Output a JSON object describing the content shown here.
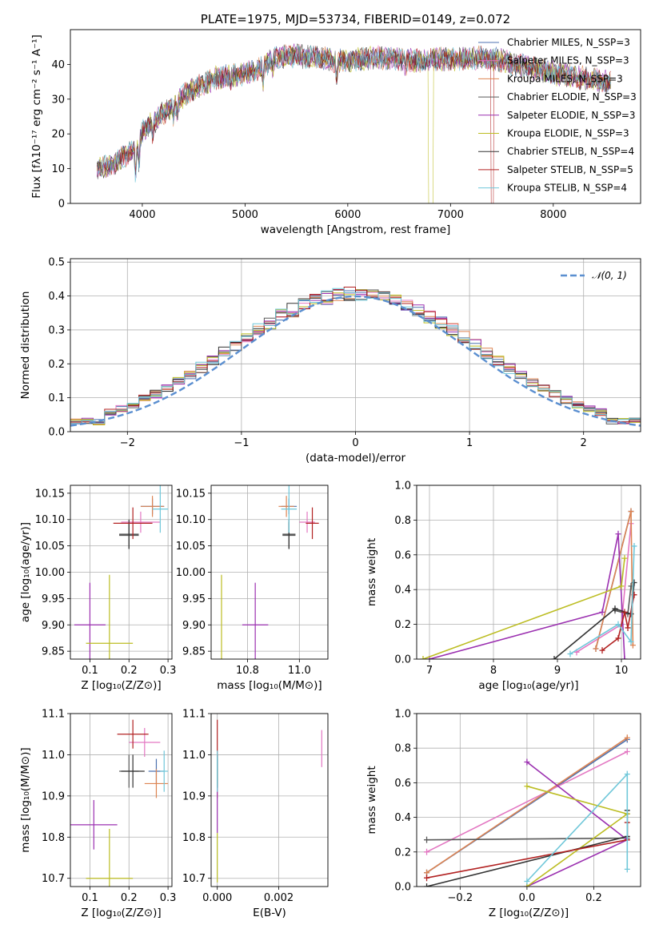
{
  "colors": {
    "chabrier_miles": "#4c72b0",
    "salpeter_miles": "#e377c2",
    "kroupa_miles": "#dd8452",
    "chabrier_elodie": "#5a5a5a",
    "salpeter_elodie": "#9b30b0",
    "kroupa_elodie": "#bcbd22",
    "chabrier_stelib": "#333333",
    "salpeter_stelib": "#b22222",
    "kroupa_stelib": "#6fc7d9",
    "gaussian": "#5b8fd0"
  },
  "chart_data": [
    {
      "name": "spectrum",
      "type": "line",
      "title": "PLATE=1975, MJD=53734, FIBERID=0149, z=0.072",
      "xlabel": "wavelength [Angstrom, rest frame]",
      "ylabel": "Flux [fλ10⁻¹⁷ erg cm⁻² s⁻¹ A⁻¹]",
      "xlim": [
        3300,
        8850
      ],
      "ylim": [
        0,
        50
      ],
      "xticks": [
        4000,
        5000,
        6000,
        7000,
        8000
      ],
      "yticks": [
        0,
        10,
        20,
        30,
        40
      ],
      "grid": false,
      "legend_position": "top-right",
      "continuum": {
        "x": [
          3560,
          3700,
          3850,
          3950,
          4000,
          4100,
          4200,
          4300,
          4400,
          4500,
          4700,
          4900,
          5100,
          5300,
          5500,
          5700,
          5900,
          6100,
          6300,
          6500,
          6700,
          6900,
          7100,
          7300,
          7500,
          7700,
          7900,
          8100,
          8300,
          8500,
          8700
        ],
        "y": [
          10,
          11,
          14,
          16,
          21,
          23,
          26,
          28,
          31,
          33,
          36,
          37,
          38,
          42,
          42.5,
          42,
          41,
          41.5,
          42,
          41.5,
          41,
          41.5,
          41.5,
          42,
          41,
          39.5,
          38,
          37,
          36,
          35,
          34
        ]
      },
      "legend": [
        "Chabrier MILES, N_SSP=3",
        "Salpeter MILES, N_SSP=3",
        "Kroupa MILES, N_SSP=3",
        "Chabrier ELODIE, N_SSP=3",
        "Salpeter ELODIE, N_SSP=3",
        "Kroupa ELODIE, N_SSP=3",
        "Chabrier STELIB, N_SSP=4",
        "Salpeter STELIB, N_SSP=5",
        "Kroupa STELIB, N_SSP=4"
      ]
    },
    {
      "name": "residuals",
      "type": "line",
      "xlabel": "(data-model)/error",
      "ylabel": "Normed distribution",
      "xlim": [
        -2.5,
        2.5
      ],
      "ylim": [
        0,
        0.51
      ],
      "xticks": [
        -2,
        -1,
        0,
        1,
        2
      ],
      "yticks": [
        0.0,
        0.1,
        0.2,
        0.3,
        0.4,
        0.5
      ],
      "grid": true,
      "legend": [
        "𝒩(0, 1)"
      ],
      "legend_position": "top-right"
    },
    {
      "name": "age_vs_Z",
      "type": "scatter",
      "xlabel": "Z [log₁₀(Z/Z⊙)]",
      "ylabel": "age  [log₁₀(age/yr)]",
      "xlim": [
        0.05,
        0.31
      ],
      "ylim": [
        9.835,
        10.165
      ],
      "xticks": [
        0.1,
        0.2,
        0.3
      ],
      "yticks": [
        9.85,
        9.9,
        9.95,
        10.0,
        10.05,
        10.1,
        10.15
      ],
      "grid": true,
      "points": [
        {
          "s": "chabrier_miles",
          "x": 0.26,
          "y": 10.125,
          "xe": 0.03,
          "ye": 0.015
        },
        {
          "s": "salpeter_miles",
          "x": 0.23,
          "y": 10.095,
          "xe": 0.05,
          "ye": 0.02
        },
        {
          "s": "kroupa_miles",
          "x": 0.26,
          "y": 10.125,
          "xe": 0.03,
          "ye": 0.02
        },
        {
          "s": "chabrier_elodie",
          "x": 0.2,
          "y": 10.07,
          "xe": 0.025,
          "ye": 0.025
        },
        {
          "s": "salpeter_elodie",
          "x": 0.1,
          "y": 9.9,
          "xe": 0.04,
          "ye": 0.08
        },
        {
          "s": "kroupa_elodie",
          "x": 0.15,
          "y": 9.865,
          "xe": 0.06,
          "ye": 0.13
        },
        {
          "s": "chabrier_stelib",
          "x": 0.2,
          "y": 10.072,
          "xe": 0.025,
          "ye": 0.028
        },
        {
          "s": "salpeter_stelib",
          "x": 0.21,
          "y": 10.093,
          "xe": 0.05,
          "ye": 0.03
        },
        {
          "s": "kroupa_stelib",
          "x": 0.28,
          "y": 10.12,
          "xe": 0.02,
          "ye": 0.045
        }
      ]
    },
    {
      "name": "age_vs_mass",
      "type": "scatter",
      "xlabel": "mass [log₁₀(M/M⊙)]",
      "ylabel": "",
      "xlim": [
        10.66,
        11.11
      ],
      "ylim": [
        9.835,
        10.165
      ],
      "xticks": [
        10.8,
        11.0
      ],
      "yticks": [
        9.85,
        9.9,
        9.95,
        10.0,
        10.05,
        10.1,
        10.15
      ],
      "grid": true,
      "points": [
        {
          "s": "chabrier_miles",
          "x": 10.96,
          "y": 10.125,
          "xe": 0.03,
          "ye": 0.015
        },
        {
          "s": "salpeter_miles",
          "x": 11.03,
          "y": 10.095,
          "xe": 0.03,
          "ye": 0.02
        },
        {
          "s": "kroupa_miles",
          "x": 10.95,
          "y": 10.125,
          "xe": 0.03,
          "ye": 0.02
        },
        {
          "s": "chabrier_elodie",
          "x": 10.96,
          "y": 10.07,
          "xe": 0.025,
          "ye": 0.025
        },
        {
          "s": "salpeter_elodie",
          "x": 10.83,
          "y": 9.9,
          "xe": 0.05,
          "ye": 0.08
        },
        {
          "s": "kroupa_elodie",
          "x": 10.7,
          "y": 9.865,
          "xe": 0.0,
          "ye": 0.13
        },
        {
          "s": "chabrier_stelib",
          "x": 10.96,
          "y": 10.072,
          "xe": 0.025,
          "ye": 0.028
        },
        {
          "s": "salpeter_stelib",
          "x": 11.05,
          "y": 10.093,
          "xe": 0.025,
          "ye": 0.03
        },
        {
          "s": "kroupa_stelib",
          "x": 10.96,
          "y": 10.12,
          "xe": 0.03,
          "ye": 0.045
        }
      ]
    },
    {
      "name": "massweight_vs_age",
      "type": "line",
      "xlabel": "age  [log₁₀(age/yr)]",
      "ylabel": "mass weight",
      "xlim": [
        6.8,
        10.3
      ],
      "ylim": [
        0,
        1
      ],
      "xticks": [
        7,
        8,
        9,
        10
      ],
      "yticks": [
        0.0,
        0.2,
        0.4,
        0.6,
        0.8,
        1.0
      ],
      "grid": true,
      "series": [
        {
          "s": "chabrier_miles",
          "x": [
            9.6,
            10.15
          ],
          "y": [
            0.06,
            0.85
          ]
        },
        {
          "s": "salpeter_miles",
          "x": [
            9.3,
            10.0,
            10.15
          ],
          "y": [
            0.04,
            0.2,
            0.78
          ]
        },
        {
          "s": "kroupa_miles",
          "x": [
            9.6,
            10.15,
            10.18
          ],
          "y": [
            0.06,
            0.85,
            0.08
          ]
        },
        {
          "s": "chabrier_elodie",
          "x": [
            9.9,
            10.1,
            10.15
          ],
          "y": [
            0.28,
            0.26,
            0.42
          ]
        },
        {
          "s": "salpeter_elodie",
          "x": [
            7.0,
            9.7,
            9.95,
            10.05
          ],
          "y": [
            0.0,
            0.27,
            0.72,
            0.0
          ]
        },
        {
          "s": "kroupa_elodie",
          "x": [
            6.9,
            10.0,
            10.05
          ],
          "y": [
            0.0,
            0.42,
            0.58
          ]
        },
        {
          "s": "chabrier_stelib",
          "x": [
            8.95,
            9.9,
            10.15,
            10.2
          ],
          "y": [
            0.0,
            0.29,
            0.26,
            0.44
          ]
        },
        {
          "s": "salpeter_stelib",
          "x": [
            9.7,
            9.95,
            10.05,
            10.1,
            10.2
          ],
          "y": [
            0.05,
            0.12,
            0.27,
            0.18,
            0.37
          ]
        },
        {
          "s": "kroupa_stelib",
          "x": [
            9.2,
            9.95,
            10.15,
            10.2
          ],
          "y": [
            0.03,
            0.2,
            0.1,
            0.65
          ]
        }
      ]
    },
    {
      "name": "mass_vs_Z",
      "type": "scatter",
      "xlabel": "Z [log₁₀(Z/Z⊙)]",
      "ylabel": "mass [log₁₀(M/M⊙)]",
      "xlim": [
        0.05,
        0.31
      ],
      "ylim": [
        10.68,
        11.1
      ],
      "xticks": [
        0.1,
        0.2,
        0.3
      ],
      "yticks": [
        10.7,
        10.8,
        10.9,
        11.0,
        11.1
      ],
      "grid": true,
      "points": [
        {
          "s": "chabrier_miles",
          "x": 0.27,
          "y": 10.96,
          "xe": 0.02,
          "ye": 0.03
        },
        {
          "s": "salpeter_miles",
          "x": 0.24,
          "y": 11.03,
          "xe": 0.04,
          "ye": 0.035
        },
        {
          "s": "kroupa_miles",
          "x": 0.27,
          "y": 10.93,
          "xe": 0.03,
          "ye": 0.035
        },
        {
          "s": "chabrier_elodie",
          "x": 0.2,
          "y": 10.96,
          "xe": 0.025,
          "ye": 0.04
        },
        {
          "s": "salpeter_elodie",
          "x": 0.11,
          "y": 10.83,
          "xe": 0.06,
          "ye": 0.06
        },
        {
          "s": "kroupa_elodie",
          "x": 0.15,
          "y": 10.7,
          "xe": 0.06,
          "ye": 0.12
        },
        {
          "s": "chabrier_stelib",
          "x": 0.21,
          "y": 10.96,
          "xe": 0.03,
          "ye": 0.04
        },
        {
          "s": "salpeter_stelib",
          "x": 0.21,
          "y": 11.05,
          "xe": 0.04,
          "ye": 0.035
        },
        {
          "s": "kroupa_stelib",
          "x": 0.29,
          "y": 10.96,
          "xe": 0.01,
          "ye": 0.05
        }
      ]
    },
    {
      "name": "mass_vs_EBV",
      "type": "scatter",
      "xlabel": "E(B-V)",
      "ylabel": "",
      "xlim": [
        -0.0002,
        0.0036
      ],
      "ylim": [
        10.68,
        11.1
      ],
      "xticks": [
        0.0,
        0.002
      ],
      "xticklabels": [
        "0.000",
        "0.002"
      ],
      "yticks": [
        10.7,
        10.8,
        10.9,
        11.0,
        11.1
      ],
      "grid": true,
      "points": [
        {
          "s": "chabrier_miles",
          "x": 0.0,
          "y": 10.96,
          "xe": 0,
          "ye": 0.03
        },
        {
          "s": "salpeter_miles",
          "x": 0.0034,
          "y": 11.015,
          "xe": 0,
          "ye": 0.045
        },
        {
          "s": "kroupa_miles",
          "x": 0.0,
          "y": 10.93,
          "xe": 0,
          "ye": 0.035
        },
        {
          "s": "chabrier_elodie",
          "x": 0.0,
          "y": 10.96,
          "xe": 0,
          "ye": 0.04
        },
        {
          "s": "salpeter_elodie",
          "x": 0.0,
          "y": 10.87,
          "xe": 0,
          "ye": 0.06
        },
        {
          "s": "kroupa_elodie",
          "x": 0.0,
          "y": 10.75,
          "xe": 0,
          "ye": 0.06
        },
        {
          "s": "chabrier_stelib",
          "x": 0.0,
          "y": 10.96,
          "xe": 0,
          "ye": 0.04
        },
        {
          "s": "salpeter_stelib",
          "x": 0.0,
          "y": 11.04,
          "xe": 0,
          "ye": 0.045
        },
        {
          "s": "kroupa_stelib",
          "x": 0.0,
          "y": 10.96,
          "xe": 0,
          "ye": 0.05
        }
      ]
    },
    {
      "name": "massweight_vs_Z",
      "type": "line",
      "xlabel": "Z [log₁₀(Z/Z⊙)]",
      "ylabel": "mass weight",
      "xlim": [
        -0.33,
        0.34
      ],
      "ylim": [
        0,
        1
      ],
      "xticks": [
        -0.2,
        0.0,
        0.2
      ],
      "yticks": [
        0.0,
        0.2,
        0.4,
        0.6,
        0.8,
        1.0
      ],
      "grid": true,
      "series": [
        {
          "s": "chabrier_miles",
          "x": [
            -0.3,
            0.3
          ],
          "y": [
            0.08,
            0.85
          ]
        },
        {
          "s": "salpeter_miles",
          "x": [
            -0.3,
            0.3
          ],
          "y": [
            0.2,
            0.78
          ]
        },
        {
          "s": "kroupa_miles",
          "x": [
            -0.3,
            0.3
          ],
          "y": [
            0.08,
            0.86
          ]
        },
        {
          "s": "chabrier_elodie",
          "x": [
            -0.3,
            0.3,
            0.3
          ],
          "y": [
            0.27,
            0.28,
            0.42
          ]
        },
        {
          "s": "salpeter_elodie",
          "x": [
            0.0,
            0.3,
            0.0
          ],
          "y": [
            0.0,
            0.27,
            0.72
          ]
        },
        {
          "s": "kroupa_elodie",
          "x": [
            0.0,
            0.3,
            0.0
          ],
          "y": [
            0.0,
            0.42,
            0.58
          ]
        },
        {
          "s": "chabrier_stelib",
          "x": [
            -0.3,
            0.3,
            0.3
          ],
          "y": [
            0.0,
            0.29,
            0.44
          ]
        },
        {
          "s": "salpeter_stelib",
          "x": [
            -0.3,
            0.3,
            0.3
          ],
          "y": [
            0.05,
            0.27,
            0.37
          ]
        },
        {
          "s": "kroupa_stelib",
          "x": [
            0.0,
            0.3,
            0.3
          ],
          "y": [
            0.03,
            0.65,
            0.1
          ]
        }
      ]
    }
  ]
}
